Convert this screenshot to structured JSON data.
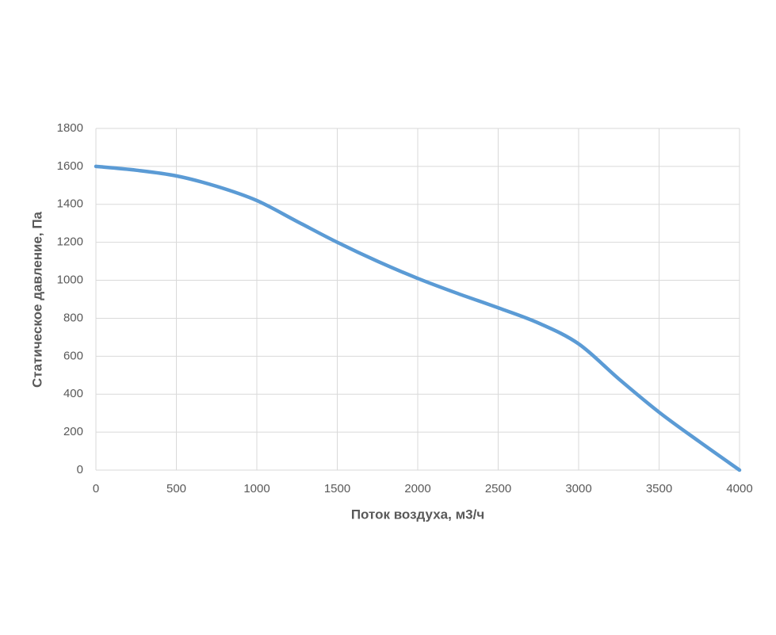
{
  "chart_data": {
    "type": "line",
    "x_label": "Поток воздуха, м3/ч",
    "y_label": "Статическое давление, Па",
    "x": [
      0,
      250,
      500,
      750,
      1000,
      1250,
      1500,
      1750,
      2000,
      2250,
      2500,
      2750,
      3000,
      3250,
      3500,
      3750,
      4000
    ],
    "values": [
      1600,
      1580,
      1550,
      1495,
      1420,
      1310,
      1200,
      1100,
      1010,
      930,
      855,
      775,
      665,
      480,
      305,
      150,
      0
    ],
    "color": "#5b9bd5",
    "xlim": [
      0,
      4000
    ],
    "xticks": [
      0,
      500,
      1000,
      1500,
      2000,
      2500,
      3000,
      3500,
      4000
    ],
    "ylim": [
      0,
      1800
    ],
    "yticks": [
      0,
      200,
      400,
      600,
      800,
      1000,
      1200,
      1400,
      1600,
      1800
    ],
    "grid": true
  }
}
